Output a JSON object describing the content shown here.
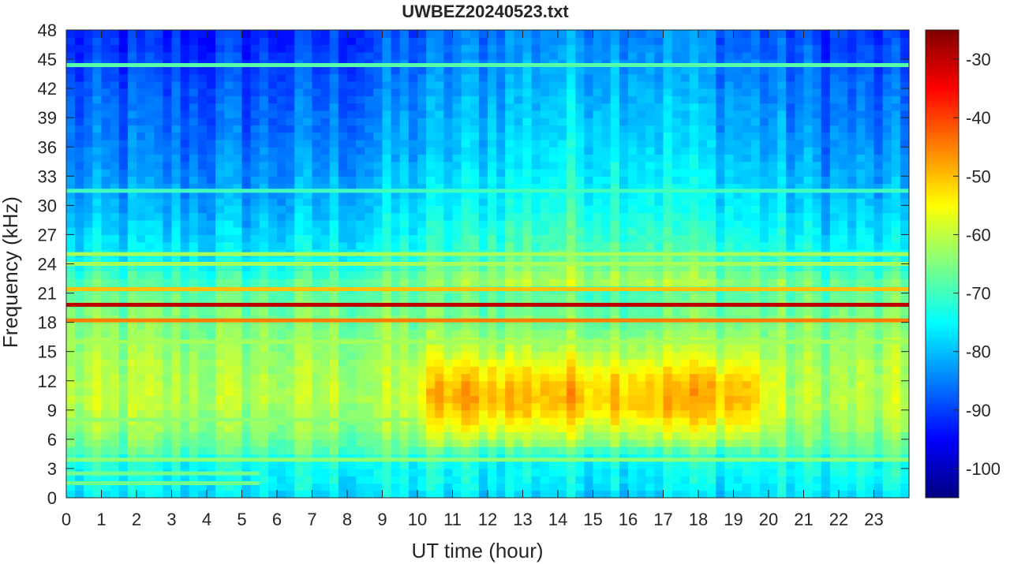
{
  "chart_data": {
    "type": "heatmap",
    "title": "UWBEZ20240523.txt",
    "xlabel": "UT time (hour)",
    "ylabel": "Frequency (kHz)",
    "xlim": [
      0,
      24
    ],
    "ylim": [
      0,
      48
    ],
    "x_ticks": [
      0,
      1,
      2,
      3,
      4,
      5,
      6,
      7,
      8,
      9,
      10,
      11,
      12,
      13,
      14,
      15,
      16,
      17,
      18,
      19,
      20,
      21,
      22,
      23
    ],
    "y_ticks": [
      0,
      3,
      6,
      9,
      12,
      15,
      18,
      21,
      24,
      27,
      30,
      33,
      36,
      39,
      42,
      45,
      48
    ],
    "colorbar": {
      "colormap": "jet",
      "clim": [
        -105,
        -25
      ],
      "ticks": [
        -100,
        -90,
        -80,
        -70,
        -60,
        -50,
        -40,
        -30
      ],
      "colors": [
        "#00008f",
        "#0000ff",
        "#00ffff",
        "#ffff00",
        "#ff0000",
        "#800000"
      ]
    },
    "background_levels_db": {
      "freq_profile": [
        {
          "f": 0,
          "db": -78
        },
        {
          "f": 1,
          "db": -76
        },
        {
          "f": 3.5,
          "db": -74
        },
        {
          "f": 5,
          "db": -68
        },
        {
          "f": 7,
          "db": -64
        },
        {
          "f": 10,
          "db": -61
        },
        {
          "f": 13,
          "db": -62
        },
        {
          "f": 16,
          "db": -64
        },
        {
          "f": 19,
          "db": -66
        },
        {
          "f": 21.5,
          "db": -68
        },
        {
          "f": 25,
          "db": -77
        },
        {
          "f": 30,
          "db": -82
        },
        {
          "f": 36,
          "db": -86
        },
        {
          "f": 42,
          "db": -89
        },
        {
          "f": 48,
          "db": -93
        }
      ],
      "daytime_enhancement": {
        "start_hour": 9.5,
        "end_hour": 20.5,
        "f_min": 5,
        "f_max": 17,
        "peak_db": -47
      }
    },
    "bands": [
      {
        "f": 19.8,
        "db": -30,
        "start": 0,
        "end": 24
      },
      {
        "f": 18.2,
        "db": -45,
        "start": 0,
        "end": 24
      },
      {
        "f": 21.4,
        "db": -50,
        "start": 0,
        "end": 24
      },
      {
        "f": 25.0,
        "db": -62,
        "start": 0,
        "end": 24
      },
      {
        "f": 24.0,
        "db": -62,
        "start": 0,
        "end": 24
      },
      {
        "f": 44.4,
        "db": -68,
        "start": 0,
        "end": 24
      },
      {
        "f": 31.5,
        "db": -70,
        "start": 0,
        "end": 24
      },
      {
        "f": 3.9,
        "db": -64,
        "start": 0,
        "end": 24
      },
      {
        "f": 8.0,
        "db": -64,
        "start": 0,
        "end": 10
      },
      {
        "f": 16.0,
        "db": -62,
        "start": 0,
        "end": 24
      },
      {
        "f": 1.5,
        "db": -66,
        "start": 0,
        "end": 5.5
      },
      {
        "f": 2.5,
        "db": -66,
        "start": 0,
        "end": 5.5
      }
    ]
  }
}
